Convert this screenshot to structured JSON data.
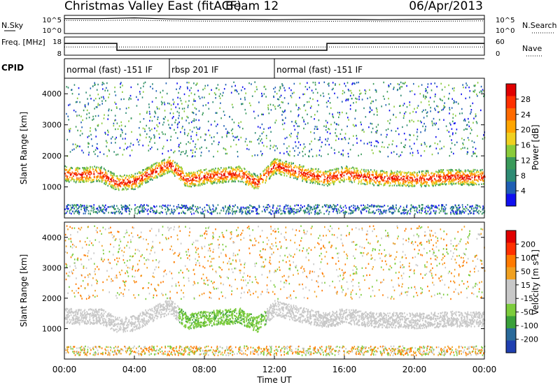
{
  "header": {
    "title": "Christmas Valley East (fitACF)",
    "beam": "Beam 12",
    "date": "06/Apr/2013"
  },
  "colors": {
    "power": [
      "#1010f0",
      "#1f5fb4",
      "#2e8b74",
      "#3a9a5a",
      "#8acb3a",
      "#f0d020",
      "#ffa500",
      "#ff6a00",
      "#ff3000",
      "#e00000"
    ],
    "velocity": [
      "#1f3fb0",
      "#2a6a9a",
      "#3aa03a",
      "#7ccc3c",
      "#c8c8c8",
      "#c8c8c8",
      "#f0a020",
      "#ff7a00",
      "#ff3000",
      "#e00000"
    ]
  },
  "chart_data": [
    {
      "type": "line",
      "name": "noise-panel",
      "label_left": "N.Sky",
      "label_right": "N.Search",
      "ytick_labels": [
        "10^5",
        "10^0"
      ],
      "x": [
        0,
        2,
        4,
        6,
        8,
        10,
        12,
        14,
        16,
        18,
        20,
        22,
        24
      ],
      "series": [
        {
          "style": "solid",
          "values": [
            4.1,
            4.1,
            4.3,
            4.0,
            3.9,
            3.9,
            3.8,
            3.9,
            3.9,
            3.8,
            3.9,
            3.9,
            4.0
          ]
        },
        {
          "style": "dotted",
          "values": [
            3.6,
            3.6,
            3.7,
            3.5,
            3.4,
            3.4,
            3.3,
            3.3,
            3.4,
            3.3,
            3.3,
            3.4,
            3.5
          ]
        }
      ]
    },
    {
      "type": "line",
      "name": "freq-nave-panel",
      "label_left": "Freq. [MHz]",
      "label_right": "Nave",
      "ytick_labels_left": [
        "18",
        "8"
      ],
      "ytick_labels_right": [
        "60",
        "0"
      ],
      "x": [
        0,
        3,
        3,
        15,
        15,
        24
      ],
      "series": [
        {
          "style": "solid",
          "values": [
            14.5,
            14.5,
            10.7,
            10.7,
            14.5,
            14.5
          ]
        },
        {
          "style": "dotted",
          "values": [
            12.5,
            12.5,
            12.5,
            12.5,
            12.5,
            12.5
          ]
        }
      ]
    },
    {
      "type": "table",
      "name": "cpid",
      "label": "CPID",
      "segments": [
        {
          "start": 0,
          "end": 6,
          "label": "normal (fast) -151 IF"
        },
        {
          "start": 6,
          "end": 12,
          "label": "rbsp 201 IF"
        },
        {
          "start": 12,
          "end": 24,
          "label": "normal (fast) -151 IF"
        }
      ]
    },
    {
      "type": "heatmap",
      "name": "power",
      "ylabel": "Slant Range [km]",
      "colorbar_label": "Power [dB]",
      "colorbar_ticks": [
        "28",
        "24",
        "20",
        "16",
        "12",
        "8",
        "4"
      ],
      "ylim": [
        0,
        4500
      ],
      "yticks": [
        1000,
        2000,
        3000,
        4000
      ],
      "xlim": [
        0,
        24
      ],
      "ridge_x": [
        0,
        1,
        2,
        3,
        4,
        5,
        6,
        7,
        8,
        9,
        10,
        11,
        12,
        13,
        14,
        15,
        16,
        17,
        18,
        19,
        20,
        21,
        22,
        23,
        24
      ],
      "ridge_y": [
        1450,
        1400,
        1450,
        1150,
        1200,
        1500,
        1750,
        1250,
        1350,
        1400,
        1450,
        1150,
        1700,
        1550,
        1400,
        1300,
        1450,
        1350,
        1300,
        1300,
        1280,
        1300,
        1350,
        1320,
        1350
      ]
    },
    {
      "type": "heatmap",
      "name": "velocity",
      "ylabel": "Slant Range [km]",
      "colorbar_label": "Velocity [m s-1]",
      "colorbar_ticks": [
        "200",
        "100",
        "50",
        "15",
        "-15",
        "-50",
        "-100",
        "-200"
      ],
      "ylim": [
        0,
        4500
      ],
      "yticks": [
        1000,
        2000,
        3000,
        4000
      ],
      "xlim": [
        0,
        24
      ],
      "xticks": [
        "00:00",
        "04:00",
        "08:00",
        "12:00",
        "16:00",
        "20:00",
        "00:00"
      ],
      "xlabel": "Time UT"
    }
  ]
}
